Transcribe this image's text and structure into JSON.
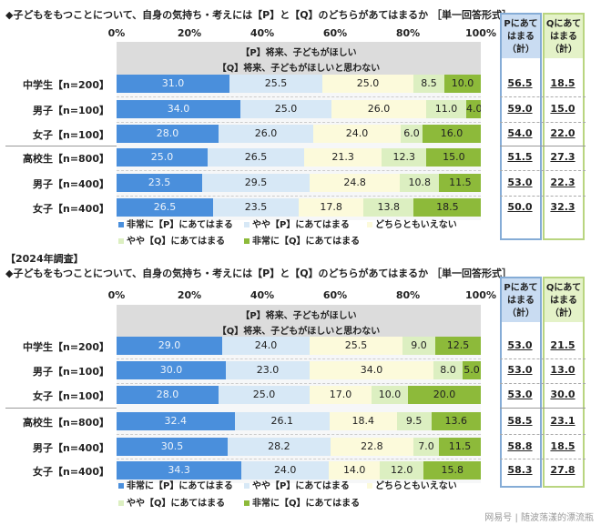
{
  "colors": [
    "#4a8fdc",
    "#d7e8f6",
    "#fcfadb",
    "#dcefc1",
    "#8dba3a"
  ],
  "side_colors": {
    "p_head": "#c9dcf2",
    "p_border": "#85acd6",
    "q_head": "#e4f2c8",
    "q_border": "#b9d580"
  },
  "watermark": "网易号 | 随波荡漾的漂流瓶",
  "chart_data": [
    {
      "type": "bar",
      "stacked": true,
      "orientation": "horizontal",
      "survey_label": "",
      "title": "◆子どもをもつことについて、自身の気持ち・考えには【P】と【Q】のどちらがあてはまるか ［単一回答形式］",
      "header_line1": "【P】将来、子どもがほしい",
      "header_line2": "【Q】将来、子どもがほしいと思わない",
      "xlim": [
        0,
        100
      ],
      "ticks": [
        "0%",
        "20%",
        "40%",
        "60%",
        "80%",
        "100%"
      ],
      "legend": [
        "非常に【P】にあてはまる",
        "やや【P】にあてはまる",
        "どちらともいえない",
        "やや【Q】にあてはまる",
        "非常に【Q】にあてはまる"
      ],
      "side_headers": {
        "p": [
          "Pにあて",
          "はまる",
          "（計）"
        ],
        "q": [
          "Qにあて",
          "はまる",
          "（計）"
        ]
      },
      "categories": [
        "中学生【n=200】",
        "男子【n=100】",
        "女子【n=100】",
        "高校生【n=800】",
        "男子【n=400】",
        "女子【n=400】"
      ],
      "values": [
        [
          31.0,
          25.5,
          25.0,
          8.5,
          10.0
        ],
        [
          34.0,
          25.0,
          26.0,
          11.0,
          4.0
        ],
        [
          28.0,
          26.0,
          24.0,
          6.0,
          16.0
        ],
        [
          25.0,
          26.5,
          21.3,
          12.3,
          15.0
        ],
        [
          23.5,
          29.5,
          24.8,
          10.8,
          11.5
        ],
        [
          26.5,
          23.5,
          17.8,
          13.8,
          18.5
        ]
      ],
      "labels": [
        [
          "31.0",
          "25.5",
          "25.0",
          "8.5",
          "10.0"
        ],
        [
          "34.0",
          "25.0",
          "26.0",
          "11.0",
          "4.0"
        ],
        [
          "28.0",
          "26.0",
          "24.0",
          "6.0",
          "16.0"
        ],
        [
          "25.0",
          "26.5",
          "21.3",
          "12.3",
          "15.0"
        ],
        [
          "23.5",
          "29.5",
          "24.8",
          "10.8",
          "11.5"
        ],
        [
          "26.5",
          "23.5",
          "17.8",
          "13.8",
          "18.5"
        ]
      ],
      "p_total": [
        "56.5",
        "59.0",
        "54.0",
        "51.5",
        "53.0",
        "50.0"
      ],
      "q_total": [
        "18.5",
        "15.0",
        "22.0",
        "27.3",
        "22.3",
        "32.3"
      ]
    },
    {
      "type": "bar",
      "stacked": true,
      "orientation": "horizontal",
      "survey_label": "【2024年調査】",
      "title": "◆子どもをもつことについて、自身の気持ち・考えには【P】と【Q】のどちらがあてはまるか ［単一回答形式］",
      "header_line1": "【P】将来、子どもがほしい",
      "header_line2": "【Q】将来、子どもがほしいと思わない",
      "xlim": [
        0,
        100
      ],
      "ticks": [
        "0%",
        "20%",
        "40%",
        "60%",
        "80%",
        "100%"
      ],
      "legend": [
        "非常に【P】にあてはまる",
        "やや【P】にあてはまる",
        "どちらともいえない",
        "やや【Q】にあてはまる",
        "非常に【Q】にあてはまる"
      ],
      "side_headers": {
        "p": [
          "Pにあて",
          "はまる",
          "（計）"
        ],
        "q": [
          "Qにあて",
          "はまる",
          "（計）"
        ]
      },
      "categories": [
        "中学生【n=200】",
        "男子【n=100】",
        "女子【n=100】",
        "高校生【n=800】",
        "男子【n=400】",
        "女子【n=400】"
      ],
      "values": [
        [
          29.0,
          24.0,
          25.5,
          9.0,
          12.5
        ],
        [
          30.0,
          23.0,
          34.0,
          8.0,
          5.0
        ],
        [
          28.0,
          25.0,
          17.0,
          10.0,
          20.0
        ],
        [
          32.4,
          26.1,
          18.4,
          9.5,
          13.6
        ],
        [
          30.5,
          28.2,
          22.8,
          7.0,
          11.5
        ],
        [
          34.3,
          24.0,
          14.0,
          12.0,
          15.8
        ]
      ],
      "labels": [
        [
          "29.0",
          "24.0",
          "25.5",
          "9.0",
          "12.5"
        ],
        [
          "30.0",
          "23.0",
          "34.0",
          "8.0",
          "5.0"
        ],
        [
          "28.0",
          "25.0",
          "17.0",
          "10.0",
          "20.0"
        ],
        [
          "32.4",
          "26.1",
          "18.4",
          "9.5",
          "13.6"
        ],
        [
          "30.5",
          "28.2",
          "22.8",
          "7.0",
          "11.5"
        ],
        [
          "34.3",
          "24.0",
          "14.0",
          "12.0",
          "15.8"
        ]
      ],
      "p_total": [
        "53.0",
        "53.0",
        "53.0",
        "58.5",
        "58.8",
        "58.3"
      ],
      "q_total": [
        "21.5",
        "13.0",
        "30.0",
        "23.1",
        "18.5",
        "27.8"
      ]
    }
  ]
}
